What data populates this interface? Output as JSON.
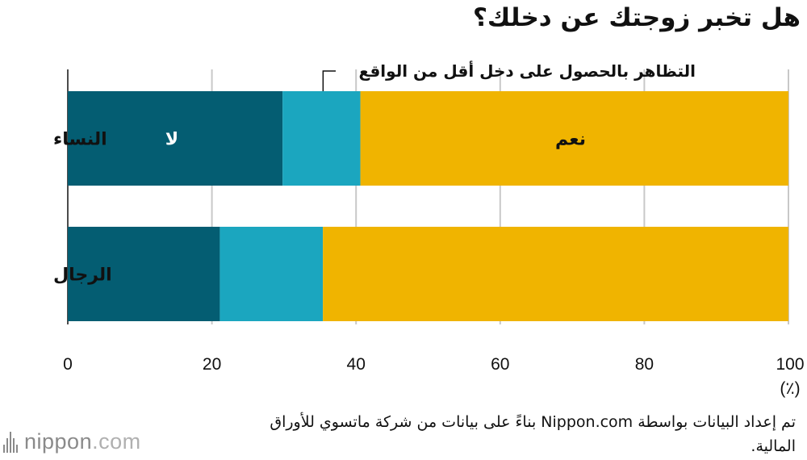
{
  "title": "هل تخبر زوجتك عن دخلك؟",
  "annotation": "التظاهر بالحصول على دخل أقل من الواقع",
  "unit_label": "(٪)",
  "source_note": "تم إعداد البيانات بواسطة Nippon.com بناءً على بيانات من شركة ماتسوي للأوراق المالية.",
  "logo": {
    "brand": "nippon",
    "suffix": ".com"
  },
  "colors": {
    "no": "#045d72",
    "pretend": "#1ba6bf",
    "yes": "#f0b400",
    "grid": "#c8c8c8"
  },
  "chart_data": {
    "type": "bar",
    "orientation": "horizontal",
    "stacked": true,
    "categories": [
      "النساء",
      "الرجال"
    ],
    "series": [
      {
        "name": "لا",
        "values": [
          29.8,
          21.1
        ]
      },
      {
        "name": "التظاهر بالحصول على دخل أقل من الواقع",
        "values": [
          10.8,
          14.3
        ]
      },
      {
        "name": "نعم",
        "values": [
          59.4,
          64.6
        ]
      }
    ],
    "xlim": [
      0,
      100
    ],
    "xticks": [
      0,
      20,
      40,
      60,
      80,
      100
    ],
    "xlabel": "(٪)",
    "grid": true
  }
}
